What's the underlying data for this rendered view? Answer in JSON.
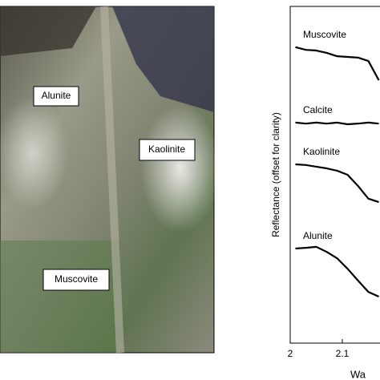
{
  "image_labels": [
    "Alunite",
    "Kaolinite",
    "Muscovite"
  ],
  "chart_data": {
    "type": "line",
    "y_label": "Reflectance (offset for clarity)",
    "x_label": "Wa",
    "x": [
      2.01,
      2.03,
      2.05,
      2.07,
      2.09,
      2.11,
      2.13,
      2.15,
      2.17
    ],
    "xlim": [
      2,
      2.17
    ],
    "xticks": [
      2,
      2.1
    ],
    "ylim": [
      0,
      1
    ],
    "color": "#000000",
    "series": [
      {
        "name": "Muscovite",
        "values": [
          0.879,
          0.871,
          0.869,
          0.862,
          0.852,
          0.85,
          0.848,
          0.838,
          0.781
        ]
      },
      {
        "name": "Calcite",
        "values": [
          0.655,
          0.652,
          0.655,
          0.652,
          0.655,
          0.65,
          0.652,
          0.655,
          0.652
        ]
      },
      {
        "name": "Kaolinite",
        "values": [
          0.531,
          0.529,
          0.524,
          0.519,
          0.512,
          0.5,
          0.467,
          0.429,
          0.419
        ]
      },
      {
        "name": "Alunite",
        "values": [
          0.281,
          0.283,
          0.286,
          0.271,
          0.252,
          0.221,
          0.186,
          0.152,
          0.138
        ]
      }
    ]
  }
}
